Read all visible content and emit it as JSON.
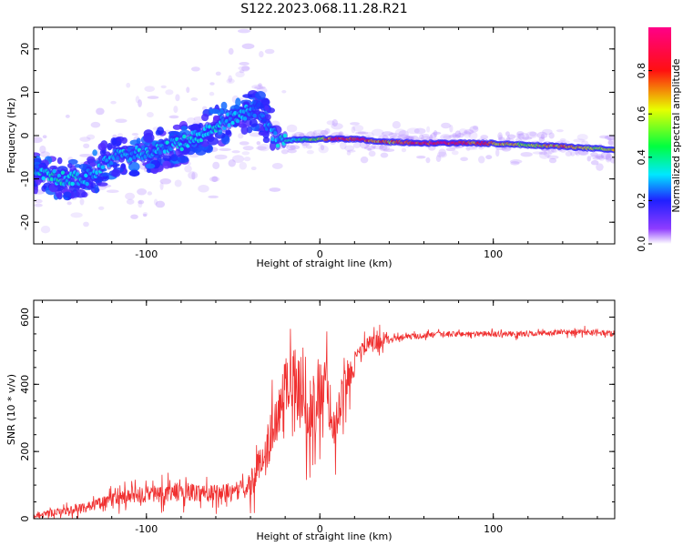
{
  "title": "S122.2023.068.11.28.R21",
  "colors": {
    "snr_line": "#f03030",
    "spectrum_low": "#9b30ff",
    "spectrum_ridge": "#ff2020",
    "axis": "#000000"
  },
  "colorbar": {
    "label": "Normalized spectral amplitude",
    "ticks": [
      "0.0",
      "0.2",
      "0.4",
      "0.6",
      "0.8"
    ],
    "range": [
      0,
      1
    ],
    "colormap": "rainbow (purple-blue-cyan-green-yellow-red-magenta)"
  },
  "chart_data": [
    {
      "type": "heatmap",
      "xlabel": "Height of straight line (km)",
      "ylabel": "Frequency (Hz)",
      "xlim": [
        -165,
        170
      ],
      "ylim": [
        -25,
        25
      ],
      "xticks": [
        "-100",
        "0",
        "100"
      ],
      "yticks": [
        "-20",
        "-10",
        "0",
        "10",
        "20"
      ],
      "grid": false,
      "ridge": [
        {
          "x": -165,
          "f": -8,
          "a": 0.35
        },
        {
          "x": -150,
          "f": -10,
          "a": 0.35
        },
        {
          "x": -135,
          "f": -10,
          "a": 0.3
        },
        {
          "x": -120,
          "f": -5,
          "a": 0.3
        },
        {
          "x": -100,
          "f": -4,
          "a": 0.3
        },
        {
          "x": -80,
          "f": -2,
          "a": 0.32
        },
        {
          "x": -60,
          "f": 2,
          "a": 0.32
        },
        {
          "x": -45,
          "f": 5,
          "a": 0.3
        },
        {
          "x": -35,
          "f": 6,
          "a": 0.25
        },
        {
          "x": -25,
          "f": -1,
          "a": 0.3
        },
        {
          "x": -15,
          "f": -1,
          "a": 0.35
        },
        {
          "x": 0,
          "f": -0.8,
          "a": 0.6
        },
        {
          "x": 10,
          "f": -0.8,
          "a": 0.9
        },
        {
          "x": 20,
          "f": -0.8,
          "a": 0.85
        },
        {
          "x": 40,
          "f": -1.5,
          "a": 0.7
        },
        {
          "x": 60,
          "f": -1.7,
          "a": 0.9
        },
        {
          "x": 80,
          "f": -1.7,
          "a": 0.85
        },
        {
          "x": 100,
          "f": -1.8,
          "a": 0.75
        },
        {
          "x": 120,
          "f": -2.2,
          "a": 0.55
        },
        {
          "x": 140,
          "f": -2.5,
          "a": 0.75
        },
        {
          "x": 160,
          "f": -3,
          "a": 0.55
        },
        {
          "x": 170,
          "f": -3.2,
          "a": 0.6
        }
      ]
    },
    {
      "type": "line",
      "xlabel": "Height of straight line (km)",
      "ylabel": "SNR (10 * v/v)",
      "xlim": [
        -165,
        170
      ],
      "ylim": [
        0,
        650
      ],
      "xticks": [
        "-100",
        "0",
        "100"
      ],
      "yticks": [
        "0",
        "200",
        "400",
        "600"
      ],
      "grid": false,
      "series": [
        {
          "x": [
            -165,
            -150,
            -135,
            -120,
            -105,
            -90,
            -75,
            -60,
            -50,
            -42,
            -35,
            -28,
            -22,
            -17,
            -12,
            -7,
            -2,
            3,
            8,
            12,
            16,
            22,
            28,
            35,
            45,
            60,
            80,
            100,
            120,
            140,
            160,
            170
          ],
          "y": [
            8,
            20,
            35,
            55,
            70,
            75,
            80,
            75,
            80,
            90,
            150,
            250,
            350,
            440,
            380,
            320,
            360,
            420,
            260,
            350,
            420,
            490,
            520,
            530,
            540,
            545,
            550,
            550,
            550,
            555,
            555,
            550
          ]
        }
      ]
    }
  ]
}
